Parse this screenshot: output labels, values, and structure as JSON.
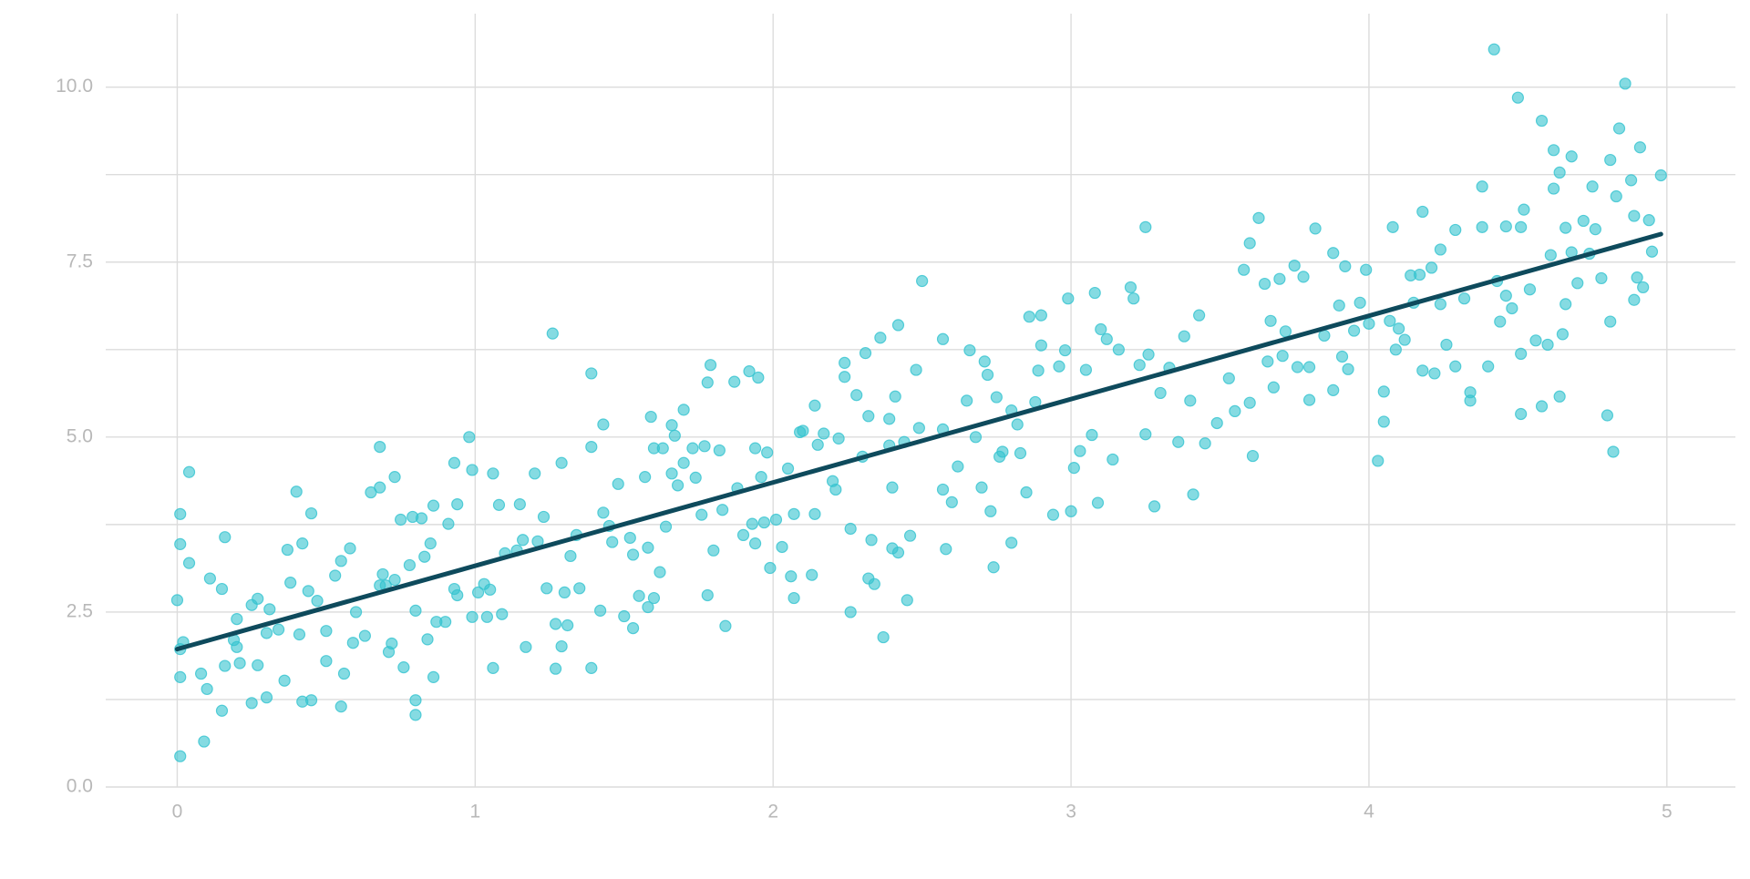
{
  "chart_data": {
    "type": "scatter",
    "x": [
      0,
      0.01,
      0.01,
      0.01,
      0.02,
      0.01,
      0.01,
      0.04,
      0.04,
      0.08,
      0.09,
      0.1,
      0.11,
      0.15,
      0.15,
      0.16,
      0.16,
      0.19,
      0.2,
      0.21,
      0.2,
      0.25,
      0.25,
      0.27,
      0.27,
      0.3,
      0.3,
      0.31,
      0.34,
      0.36,
      0.37,
      0.38,
      0.4,
      0.41,
      0.42,
      0.42,
      0.44,
      0.45,
      0.45,
      0.47,
      0.5,
      0.5,
      0.53,
      0.55,
      0.55,
      0.56,
      0.58,
      0.59,
      0.6,
      0.63,
      0.65,
      0.68,
      0.68,
      0.68,
      0.69,
      0.7,
      0.71,
      0.72,
      0.73,
      0.73,
      0.75,
      0.76,
      0.78,
      0.79,
      0.8,
      0.8,
      0.8,
      0.82,
      0.83,
      0.84,
      0.85,
      0.86,
      0.86,
      0.87,
      0.9,
      0.91,
      0.93,
      0.93,
      0.94,
      0.94,
      0.98,
      0.99,
      0.99,
      1.01,
      1.03,
      1.04,
      1.05,
      1.06,
      1.06,
      1.08,
      1.09,
      1.1,
      1.14,
      1.15,
      1.16,
      1.17,
      1.2,
      1.21,
      1.23,
      1.24,
      1.26,
      1.27,
      1.27,
      1.29,
      1.29,
      1.3,
      1.31,
      1.32,
      1.34,
      1.35,
      1.39,
      1.39,
      1.39,
      1.42,
      1.43,
      1.43,
      1.45,
      1.46,
      1.48,
      1.5,
      1.52,
      1.53,
      1.53,
      1.55,
      1.57,
      1.58,
      1.58,
      1.59,
      1.6,
      1.6,
      1.62,
      1.63,
      1.64,
      1.66,
      1.66,
      1.67,
      1.68,
      1.7,
      1.7,
      1.73,
      1.74,
      1.76,
      1.77,
      1.78,
      1.78,
      1.79,
      1.8,
      1.82,
      1.83,
      1.84,
      1.87,
      1.88,
      1.9,
      1.92,
      1.93,
      1.94,
      1.94,
      1.95,
      1.96,
      1.97,
      1.98,
      1.99,
      2.01,
      2.03,
      2.05,
      2.06,
      2.07,
      2.07,
      2.09,
      2.1,
      2.13,
      2.14,
      2.14,
      2.15,
      2.17,
      2.2,
      2.21,
      2.22,
      2.24,
      2.24,
      2.26,
      2.26,
      2.28,
      2.3,
      2.31,
      2.32,
      2.32,
      2.33,
      2.34,
      2.36,
      2.37,
      2.39,
      2.39,
      2.4,
      2.4,
      2.41,
      2.42,
      2.42,
      2.44,
      2.45,
      2.46,
      2.48,
      2.49,
      2.5,
      2.57,
      2.57,
      2.57,
      2.58,
      2.6,
      2.62,
      2.65,
      2.66,
      2.68,
      2.7,
      2.71,
      2.72,
      2.73,
      2.74,
      2.75,
      2.76,
      2.77,
      2.8,
      2.8,
      2.82,
      2.83,
      2.85,
      2.86,
      2.88,
      2.89,
      2.9,
      2.9,
      2.94,
      2.96,
      2.98,
      2.99,
      3.0,
      3.01,
      3.03,
      3.05,
      3.07,
      3.08,
      3.09,
      3.1,
      3.12,
      3.14,
      3.16,
      3.2,
      3.21,
      3.23,
      3.25,
      3.25,
      3.26,
      3.28,
      3.3,
      3.33,
      3.36,
      3.38,
      3.4,
      3.41,
      3.43,
      3.45,
      3.49,
      3.53,
      3.55,
      3.58,
      3.6,
      3.6,
      3.61,
      3.63,
      3.65,
      3.66,
      3.67,
      3.68,
      3.7,
      3.71,
      3.72,
      3.75,
      3.76,
      3.78,
      3.8,
      3.8,
      3.82,
      3.85,
      3.88,
      3.88,
      3.9,
      3.91,
      3.92,
      3.93,
      3.95,
      3.97,
      3.99,
      4.0,
      4.03,
      4.05,
      4.05,
      4.07,
      4.08,
      4.09,
      4.1,
      4.12,
      4.14,
      4.15,
      4.17,
      4.18,
      4.18,
      4.21,
      4.22,
      4.24,
      4.24,
      4.26,
      4.29,
      4.29,
      4.32,
      4.34,
      4.34,
      4.38,
      4.38,
      4.4,
      4.42,
      4.43,
      4.44,
      4.46,
      4.46,
      4.48,
      4.5,
      4.51,
      4.51,
      4.51,
      4.52,
      4.54,
      4.56,
      4.58,
      4.58,
      4.6,
      4.61,
      4.62,
      4.62,
      4.64,
      4.64,
      4.65,
      4.66,
      4.66,
      4.68,
      4.68,
      4.7,
      4.72,
      4.74,
      4.75,
      4.76,
      4.78,
      4.8,
      4.81,
      4.81,
      4.82,
      4.83,
      4.84,
      4.86,
      4.88,
      4.89,
      4.89,
      4.9,
      4.91,
      4.92,
      4.94,
      4.95,
      4.98
    ],
    "values": [
      2.67,
      3.9,
      3.47,
      1.97,
      2.07,
      1.57,
      0.44,
      4.5,
      3.2,
      1.62,
      0.65,
      1.4,
      2.98,
      2.83,
      1.09,
      3.57,
      1.73,
      2.1,
      2.0,
      1.77,
      2.4,
      2.6,
      1.2,
      2.69,
      1.74,
      2.2,
      1.28,
      2.54,
      2.25,
      1.52,
      3.39,
      2.92,
      4.22,
      2.18,
      3.48,
      1.22,
      2.8,
      3.91,
      1.24,
      2.66,
      2.23,
      1.8,
      3.02,
      3.23,
      1.15,
      1.62,
      3.41,
      2.06,
      2.5,
      2.16,
      4.21,
      4.86,
      4.28,
      2.88,
      3.04,
      2.88,
      1.93,
      2.05,
      4.43,
      2.96,
      3.82,
      1.71,
      3.17,
      3.86,
      1.03,
      1.24,
      2.52,
      3.84,
      3.29,
      2.11,
      3.48,
      4.02,
      1.57,
      2.36,
      2.36,
      3.76,
      4.63,
      2.83,
      4.04,
      2.74,
      5.0,
      4.53,
      2.43,
      2.78,
      2.9,
      2.43,
      2.82,
      4.48,
      1.7,
      4.03,
      2.47,
      3.34,
      3.38,
      4.04,
      3.53,
      2.0,
      4.48,
      3.51,
      3.86,
      2.84,
      6.48,
      2.33,
      1.69,
      4.63,
      2.01,
      2.78,
      2.31,
      3.3,
      3.6,
      2.84,
      5.91,
      4.86,
      1.7,
      2.52,
      5.18,
      3.92,
      3.73,
      3.5,
      4.33,
      2.44,
      3.56,
      3.32,
      2.27,
      2.73,
      4.43,
      3.42,
      2.57,
      5.29,
      4.84,
      2.7,
      3.07,
      4.84,
      3.72,
      5.17,
      4.48,
      5.02,
      4.31,
      5.39,
      4.63,
      4.84,
      4.42,
      3.89,
      4.87,
      5.78,
      2.74,
      6.03,
      3.38,
      4.81,
      3.96,
      2.3,
      5.79,
      4.27,
      3.6,
      5.94,
      3.76,
      3.48,
      4.84,
      5.85,
      4.43,
      3.78,
      4.78,
      3.13,
      3.82,
      3.43,
      4.55,
      3.01,
      3.9,
      2.7,
      5.07,
      5.09,
      3.03,
      5.45,
      3.9,
      4.89,
      5.05,
      4.37,
      4.25,
      4.98,
      6.06,
      5.86,
      3.69,
      2.5,
      5.6,
      4.72,
      6.2,
      5.3,
      2.98,
      3.53,
      2.9,
      6.42,
      2.14,
      5.26,
      4.88,
      3.41,
      4.28,
      5.58,
      6.6,
      3.35,
      4.93,
      2.67,
      3.59,
      5.96,
      5.13,
      7.23,
      6.4,
      5.11,
      4.25,
      3.4,
      4.07,
      4.58,
      5.52,
      6.24,
      5.0,
      4.28,
      6.08,
      5.89,
      3.94,
      3.14,
      5.57,
      4.72,
      4.79,
      5.38,
      3.49,
      5.18,
      4.77,
      4.21,
      6.72,
      5.5,
      5.95,
      6.74,
      6.31,
      3.89,
      6.01,
      6.24,
      6.98,
      3.94,
      4.56,
      4.8,
      5.96,
      5.03,
      7.06,
      4.06,
      6.54,
      6.4,
      4.68,
      6.25,
      7.14,
      6.98,
      6.03,
      8.0,
      5.04,
      6.18,
      4.01,
      5.63,
      5.99,
      4.93,
      6.44,
      5.52,
      4.18,
      6.74,
      4.91,
      5.2,
      5.84,
      5.37,
      7.39,
      7.77,
      5.49,
      4.73,
      8.13,
      7.19,
      6.08,
      6.66,
      5.71,
      7.26,
      6.16,
      6.51,
      7.45,
      6.0,
      7.29,
      5.53,
      6.0,
      7.98,
      6.45,
      7.63,
      5.67,
      6.88,
      6.15,
      7.44,
      5.97,
      6.52,
      6.92,
      7.39,
      6.62,
      4.66,
      5.22,
      5.65,
      6.66,
      8.0,
      6.25,
      6.55,
      6.39,
      7.31,
      6.92,
      7.32,
      8.22,
      5.95,
      7.42,
      5.91,
      6.9,
      7.68,
      6.32,
      7.96,
      6.01,
      6.98,
      5.64,
      5.52,
      8.58,
      8.0,
      6.01,
      10.54,
      7.23,
      6.65,
      8.01,
      7.02,
      6.84,
      9.85,
      8.0,
      6.19,
      5.33,
      8.25,
      7.11,
      6.38,
      9.52,
      5.44,
      6.32,
      7.6,
      9.1,
      8.55,
      8.78,
      5.58,
      6.47,
      7.99,
      6.9,
      9.01,
      7.64,
      7.2,
      8.09,
      7.62,
      8.58,
      7.97,
      7.27,
      5.31,
      8.96,
      6.65,
      4.79,
      8.44,
      9.41,
      10.05,
      8.67,
      8.16,
      6.96,
      7.28,
      9.14,
      7.14,
      8.1,
      7.65,
      8.74
    ],
    "color": "#33c3cf",
    "trend_line": {
      "x": [
        0,
        4.98
      ],
      "values": [
        1.97,
        7.9
      ],
      "color": "#0e4a5c"
    },
    "xlim": [
      -0.24,
      5.23
    ],
    "ylim": [
      0,
      11.05
    ],
    "xticks": [
      0,
      1,
      2,
      3,
      4,
      5
    ],
    "yticks": [
      {
        "value": 0,
        "label": "0.0"
      },
      {
        "value": 2.5,
        "label": "2.5"
      },
      {
        "value": 5,
        "label": "5.0"
      },
      {
        "value": 7.5,
        "label": "7.5"
      },
      {
        "value": 10,
        "label": "10.0"
      }
    ],
    "y_minor_ticks": [
      1.25,
      3.75,
      6.25,
      8.75
    ],
    "grid": true
  }
}
